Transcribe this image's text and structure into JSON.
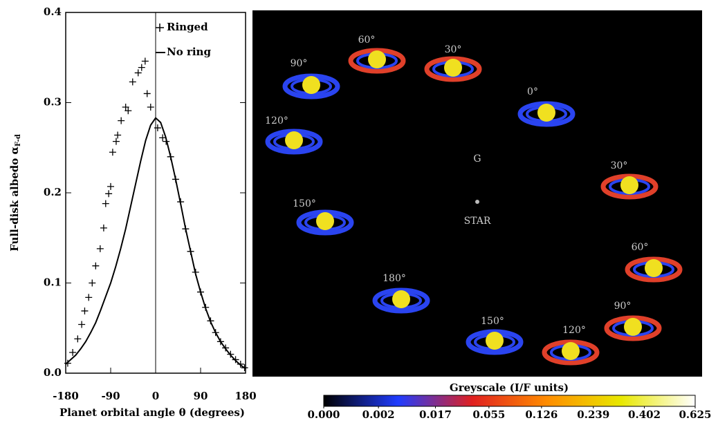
{
  "chart_data": [
    {
      "type": "line",
      "xlabel": "Planet orbital angle θ (degrees)",
      "ylabel": "Full-disk albedo α",
      "ylabel_sub": "F-d",
      "xlim": [
        -180,
        180
      ],
      "xticks": [
        -180,
        -90,
        0,
        90,
        180
      ],
      "ylim": [
        0,
        0.4
      ],
      "yticks": [
        {
          "value": 0,
          "label": "0.0"
        },
        0.1,
        0.2,
        0.3,
        0.4
      ],
      "vline_x": 0,
      "legend": "top-right",
      "series": [
        {
          "name": "Ringed",
          "marker": "+",
          "color": "#000000",
          "x": [
            -176,
            -166,
            -156,
            -148,
            -142,
            -134,
            -127,
            -120,
            -111,
            -104,
            -100,
            -94,
            -90,
            -86,
            -79,
            -76,
            -69,
            -60,
            -55,
            -46,
            -35,
            -28,
            -21,
            -17,
            -10,
            4,
            14,
            21,
            30,
            40,
            50,
            60,
            70,
            80,
            90,
            100,
            110,
            120,
            130,
            140,
            150,
            160,
            170,
            178
          ],
          "values": [
            0.011,
            0.023,
            0.038,
            0.054,
            0.069,
            0.084,
            0.1,
            0.119,
            0.138,
            0.161,
            0.188,
            0.199,
            0.207,
            0.245,
            0.257,
            0.264,
            0.28,
            0.295,
            0.291,
            0.323,
            0.333,
            0.339,
            0.346,
            0.31,
            0.295,
            0.272,
            0.261,
            0.257,
            0.24,
            0.215,
            0.19,
            0.16,
            0.135,
            0.112,
            0.09,
            0.073,
            0.058,
            0.045,
            0.035,
            0.028,
            0.021,
            0.015,
            0.01,
            0.006
          ]
        },
        {
          "name": "No ring",
          "marker": "line",
          "color": "#000000",
          "x": [
            -180,
            -170,
            -160,
            -150,
            -140,
            -130,
            -120,
            -110,
            -100,
            -90,
            -80,
            -70,
            -60,
            -50,
            -40,
            -30,
            -20,
            -10,
            0,
            10,
            20,
            30,
            40,
            50,
            60,
            70,
            80,
            90,
            100,
            110,
            120,
            130,
            140,
            150,
            160,
            170,
            180
          ],
          "values": [
            0.01,
            0.015,
            0.02,
            0.027,
            0.035,
            0.045,
            0.056,
            0.07,
            0.085,
            0.1,
            0.118,
            0.138,
            0.16,
            0.185,
            0.21,
            0.235,
            0.258,
            0.275,
            0.283,
            0.278,
            0.262,
            0.24,
            0.215,
            0.188,
            0.16,
            0.135,
            0.11,
            0.09,
            0.072,
            0.057,
            0.045,
            0.035,
            0.027,
            0.02,
            0.014,
            0.009,
            0.005
          ]
        }
      ]
    },
    {
      "type": "colorbar",
      "title": "Greyscale (I/F units)",
      "clim": [
        0,
        0.625
      ],
      "scale": "cuberoot",
      "colors": [
        "#000000",
        "#1f3cff",
        "#e02020",
        "#ff8c00",
        "#e8e800",
        "#ffffff"
      ],
      "ticks": [
        {
          "value": 0,
          "label": "0.000"
        },
        0.002,
        0.017,
        0.055,
        0.126,
        0.239,
        0.402,
        0.625
      ]
    }
  ],
  "orbit_image": {
    "labels": [
      "60°",
      "30°",
      "90°",
      "0°",
      "120°",
      "30°",
      "150°",
      "60°",
      "180°",
      "150°",
      "90°",
      "120°",
      "G",
      "STAR"
    ]
  }
}
